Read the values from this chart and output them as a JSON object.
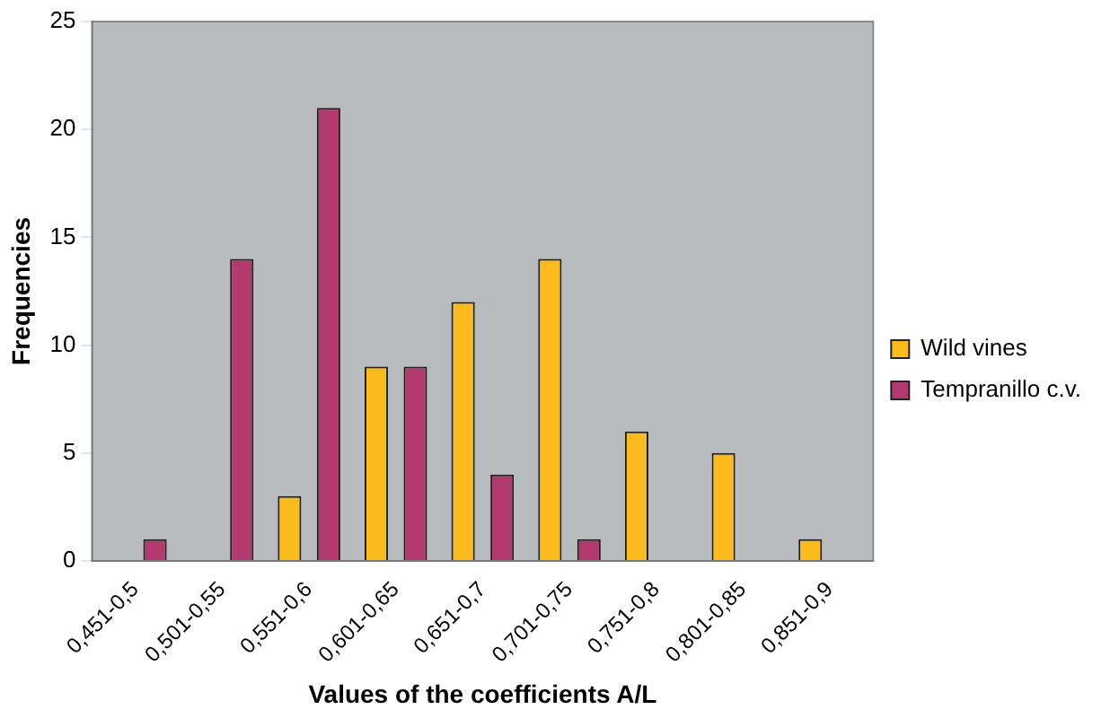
{
  "chart_data": {
    "type": "bar",
    "xlabel": "Values of the coefficients A/L",
    "ylabel": "Frequencies",
    "categories": [
      "0,451-0,5",
      "0,501-0,55",
      "0,551-0,6",
      "0,601-0,65",
      "0,651-0,7",
      "0,701-0,75",
      "0,751-0,8",
      "0,801-0,85",
      "0,851-0,9"
    ],
    "series": [
      {
        "name": "Wild vines",
        "color": "#fbbb1c",
        "values": [
          0,
          0,
          3,
          9,
          12,
          14,
          6,
          5,
          1
        ]
      },
      {
        "name": "Tempranillo c.v.",
        "color": "#b23a6e",
        "values": [
          1,
          14,
          21,
          9,
          4,
          1,
          0,
          0,
          0
        ]
      }
    ],
    "ylim": [
      0,
      25
    ],
    "yticks": [
      0,
      5,
      10,
      15,
      20,
      25
    ],
    "grid": false,
    "legend": "right"
  }
}
